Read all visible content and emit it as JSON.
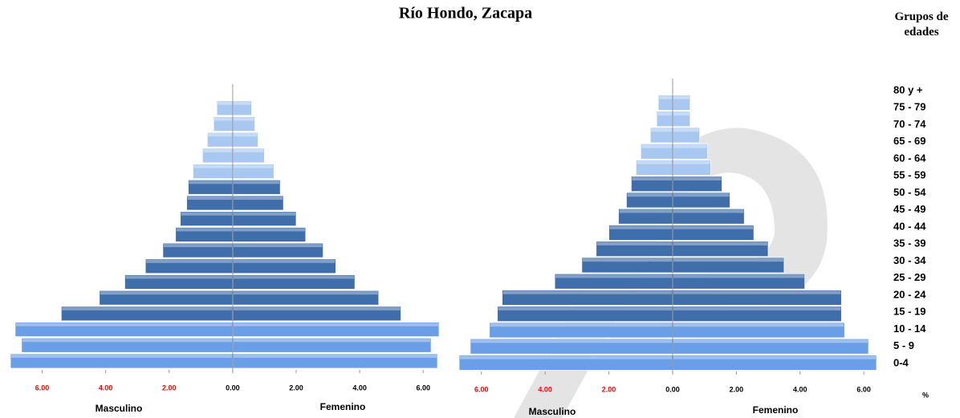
{
  "header": {
    "title": "Río Hondo, Zacapa",
    "age_axis_title": "Grupos de edades",
    "unit": "%"
  },
  "chart_data": [
    {
      "type": "pyramid",
      "series": [
        {
          "name": "Masculino",
          "side": "left",
          "values": [
            7.0,
            6.65,
            6.85,
            5.4,
            4.2,
            3.4,
            2.75,
            2.2,
            1.8,
            1.65,
            1.45,
            1.4,
            1.25,
            0.95,
            0.8,
            0.6,
            0.5
          ]
        },
        {
          "name": "Femenino",
          "side": "right",
          "values": [
            6.45,
            6.25,
            6.5,
            5.3,
            4.6,
            3.85,
            3.25,
            2.85,
            2.3,
            2.0,
            1.6,
            1.5,
            1.3,
            1.0,
            0.8,
            0.7,
            0.6
          ]
        }
      ],
      "bar_colors": [
        "#6a9ee6",
        "#6a9ee6",
        "#6a9ee6",
        "#3f6eaa",
        "#3f6eaa",
        "#3f6eaa",
        "#3f6eaa",
        "#3f6eaa",
        "#3f6eaa",
        "#3f6eaa",
        "#3f6eaa",
        "#3f6eaa",
        "#a8c8f2",
        "#a8c8f2",
        "#a8c8f2",
        "#a8c8f2",
        "#a8c8f2"
      ],
      "negative_tick_color": "#ff0000",
      "xlim": [
        -7.05,
        6.5
      ],
      "xticks": [
        {
          "value": -6,
          "label": "6.00"
        },
        {
          "value": -4,
          "label": "4.00"
        },
        {
          "value": -2,
          "label": "2.00"
        },
        {
          "value": 0,
          "label": "0.00"
        },
        {
          "value": 2,
          "label": "2.00"
        },
        {
          "value": 4,
          "label": "4.00"
        },
        {
          "value": 6,
          "label": "6.00"
        }
      ]
    },
    {
      "type": "pyramid",
      "categories": [
        "0-4",
        "5 - 9",
        "10 - 14",
        "15 - 19",
        "20 - 24",
        "25 - 29",
        "30 - 34",
        "35 - 39",
        "40 - 44",
        "45 - 49",
        "50 - 54",
        "55 - 59",
        "60 - 64",
        "65 - 69",
        "70 - 74",
        "75 - 79",
        "80 y +"
      ],
      "series": [
        {
          "name": "Masculino",
          "side": "left",
          "values": [
            6.7,
            6.35,
            5.75,
            5.5,
            5.35,
            3.7,
            2.85,
            2.4,
            2.0,
            1.7,
            1.45,
            1.3,
            1.15,
            1.0,
            0.7,
            0.5,
            0.45
          ]
        },
        {
          "name": "Femenino",
          "side": "right",
          "values": [
            6.4,
            6.15,
            5.4,
            5.3,
            5.3,
            4.15,
            3.5,
            3.0,
            2.55,
            2.25,
            1.8,
            1.55,
            1.2,
            1.1,
            0.85,
            0.55,
            0.55
          ]
        }
      ],
      "bar_colors": [
        "#6a9ee6",
        "#6a9ee6",
        "#6a9ee6",
        "#3f6eaa",
        "#3f6eaa",
        "#3f6eaa",
        "#3f6eaa",
        "#3f6eaa",
        "#3f6eaa",
        "#3f6eaa",
        "#3f6eaa",
        "#3f6eaa",
        "#a8c8f2",
        "#a8c8f2",
        "#a8c8f2",
        "#a8c8f2",
        "#a8c8f2"
      ],
      "negative_tick_color": "#ff0000",
      "xlim": [
        -6.75,
        6.5
      ],
      "xticks": [
        {
          "value": -6,
          "label": "6.00"
        },
        {
          "value": -4,
          "label": "4.00"
        },
        {
          "value": -2,
          "label": "2.00"
        },
        {
          "value": 0,
          "label": "0.00"
        },
        {
          "value": 2,
          "label": "2.00"
        },
        {
          "value": 4,
          "label": "4.00"
        },
        {
          "value": 6,
          "label": "6.00"
        }
      ]
    }
  ]
}
